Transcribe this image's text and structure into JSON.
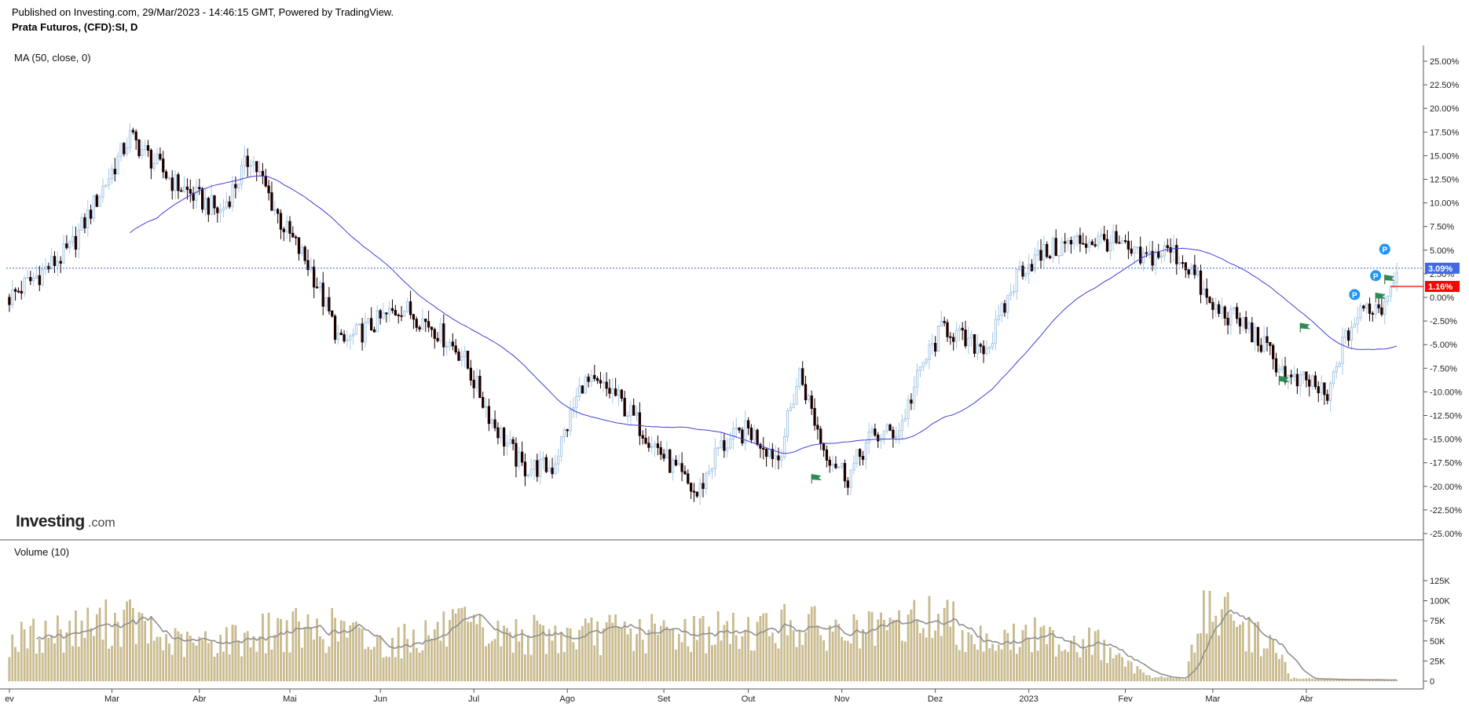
{
  "header": {
    "published": "Published on Investing.com, 29/Mar/2023 - 14:46:15 GMT, Powered by TradingView.",
    "symbol": "Prata Futuros, (CFD):SI, D"
  },
  "watermark": {
    "brand": "Investing",
    "suffix": ".com"
  },
  "colors": {
    "up_candle": "#a6c8e6",
    "down_candle": "#1c0000",
    "ma_line": "#3f3fd8",
    "volume_bar": "#cdbd8e",
    "volume_ma": "#909090",
    "price_line": "#3a6fd8",
    "last_price_bg": "#4169e1",
    "marker_bg": "#ff0000",
    "pin": "#2196f3",
    "flag": "#2e8b57"
  },
  "chart_data": [
    {
      "type": "candlestick",
      "title": "MA (50, close, 0)",
      "y_axis": {
        "unit": "%",
        "ticks": [
          "25.00%",
          "22.50%",
          "20.00%",
          "17.50%",
          "15.00%",
          "12.50%",
          "10.00%",
          "7.50%",
          "5.00%",
          "2.50%",
          "0.00%",
          "-2.50%",
          "-5.00%",
          "-7.50%",
          "-10.00%",
          "-12.50%",
          "-15.00%",
          "-17.50%",
          "-20.00%",
          "-22.50%",
          "-25.00%"
        ],
        "ylim": [
          -25,
          25
        ]
      },
      "x_axis": {
        "ticks": [
          "ev",
          "Mar",
          "Abr",
          "Mai",
          "Jun",
          "Jul",
          "Ago",
          "Set",
          "Out",
          "Nov",
          "Dez",
          "2023",
          "Fev",
          "Mar",
          "Abr"
        ]
      },
      "last_value_label": "3.09%",
      "last_value": 3.09,
      "marker_label": "1.16%",
      "marker_value": 1.16,
      "pin_label": "P",
      "anchors": [
        {
          "d": 0,
          "v": 0
        },
        {
          "d": 20,
          "v": 5
        },
        {
          "d": 40,
          "v": 17
        },
        {
          "d": 55,
          "v": 12
        },
        {
          "d": 70,
          "v": 9
        },
        {
          "d": 80,
          "v": 15
        },
        {
          "d": 90,
          "v": 8
        },
        {
          "d": 100,
          "v": 3
        },
        {
          "d": 110,
          "v": -5
        },
        {
          "d": 120,
          "v": -3
        },
        {
          "d": 130,
          "v": -1
        },
        {
          "d": 140,
          "v": -3
        },
        {
          "d": 150,
          "v": -6
        },
        {
          "d": 160,
          "v": -13
        },
        {
          "d": 170,
          "v": -18
        },
        {
          "d": 180,
          "v": -18
        },
        {
          "d": 190,
          "v": -9
        },
        {
          "d": 200,
          "v": -10
        },
        {
          "d": 210,
          "v": -14
        },
        {
          "d": 220,
          "v": -18
        },
        {
          "d": 228,
          "v": -21
        },
        {
          "d": 235,
          "v": -16
        },
        {
          "d": 245,
          "v": -14
        },
        {
          "d": 255,
          "v": -17
        },
        {
          "d": 262,
          "v": -8
        },
        {
          "d": 270,
          "v": -16
        },
        {
          "d": 278,
          "v": -19
        },
        {
          "d": 285,
          "v": -15
        },
        {
          "d": 295,
          "v": -14
        },
        {
          "d": 303,
          "v": -7
        },
        {
          "d": 310,
          "v": -3
        },
        {
          "d": 318,
          "v": -5
        },
        {
          "d": 325,
          "v": -5
        },
        {
          "d": 335,
          "v": 3
        },
        {
          "d": 345,
          "v": 5
        },
        {
          "d": 355,
          "v": 6
        },
        {
          "d": 365,
          "v": 6
        },
        {
          "d": 375,
          "v": 4
        },
        {
          "d": 385,
          "v": 5
        },
        {
          "d": 392,
          "v": 3
        },
        {
          "d": 398,
          "v": -1
        },
        {
          "d": 405,
          "v": -2
        },
        {
          "d": 410,
          "v": -3
        },
        {
          "d": 418,
          "v": -6
        },
        {
          "d": 425,
          "v": -9
        },
        {
          "d": 432,
          "v": -9
        },
        {
          "d": 437,
          "v": -11
        },
        {
          "d": 441,
          "v": -6
        },
        {
          "d": 445,
          "v": -3
        },
        {
          "d": 450,
          "v": -1
        },
        {
          "d": 455,
          "v": -1
        },
        {
          "d": 460,
          "v": 3
        }
      ]
    },
    {
      "type": "bar",
      "title": "Volume (10)",
      "y_axis": {
        "ticks": [
          "125K",
          "100K",
          "75K",
          "50K",
          "25K",
          "0"
        ],
        "ylim": [
          0,
          125000
        ]
      },
      "anchors": [
        {
          "d": 0,
          "v": 50000
        },
        {
          "d": 30,
          "v": 70000
        },
        {
          "d": 40,
          "v": 75000
        },
        {
          "d": 50,
          "v": 50000
        },
        {
          "d": 60,
          "v": 45000
        },
        {
          "d": 80,
          "v": 55000
        },
        {
          "d": 90,
          "v": 65000
        },
        {
          "d": 100,
          "v": 60000
        },
        {
          "d": 110,
          "v": 65000
        },
        {
          "d": 120,
          "v": 45000
        },
        {
          "d": 130,
          "v": 50000
        },
        {
          "d": 140,
          "v": 60000
        },
        {
          "d": 150,
          "v": 65000
        },
        {
          "d": 160,
          "v": 55000
        },
        {
          "d": 170,
          "v": 58000
        },
        {
          "d": 180,
          "v": 55000
        },
        {
          "d": 190,
          "v": 55000
        },
        {
          "d": 200,
          "v": 60000
        },
        {
          "d": 210,
          "v": 58000
        },
        {
          "d": 220,
          "v": 60000
        },
        {
          "d": 230,
          "v": 62000
        },
        {
          "d": 240,
          "v": 60000
        },
        {
          "d": 250,
          "v": 65000
        },
        {
          "d": 260,
          "v": 70000
        },
        {
          "d": 270,
          "v": 62000
        },
        {
          "d": 280,
          "v": 60000
        },
        {
          "d": 290,
          "v": 60000
        },
        {
          "d": 300,
          "v": 75000
        },
        {
          "d": 310,
          "v": 78000
        },
        {
          "d": 320,
          "v": 55000
        },
        {
          "d": 330,
          "v": 50000
        },
        {
          "d": 340,
          "v": 55000
        },
        {
          "d": 350,
          "v": 50000
        },
        {
          "d": 360,
          "v": 48000
        },
        {
          "d": 370,
          "v": 20000
        },
        {
          "d": 380,
          "v": 5000
        },
        {
          "d": 390,
          "v": 3000
        },
        {
          "d": 395,
          "v": 80000
        },
        {
          "d": 400,
          "v": 90000
        },
        {
          "d": 410,
          "v": 60000
        },
        {
          "d": 415,
          "v": 55000
        },
        {
          "d": 420,
          "v": 40000
        },
        {
          "d": 425,
          "v": 3000
        },
        {
          "d": 440,
          "v": 2000
        },
        {
          "d": 460,
          "v": 1000
        }
      ]
    }
  ]
}
